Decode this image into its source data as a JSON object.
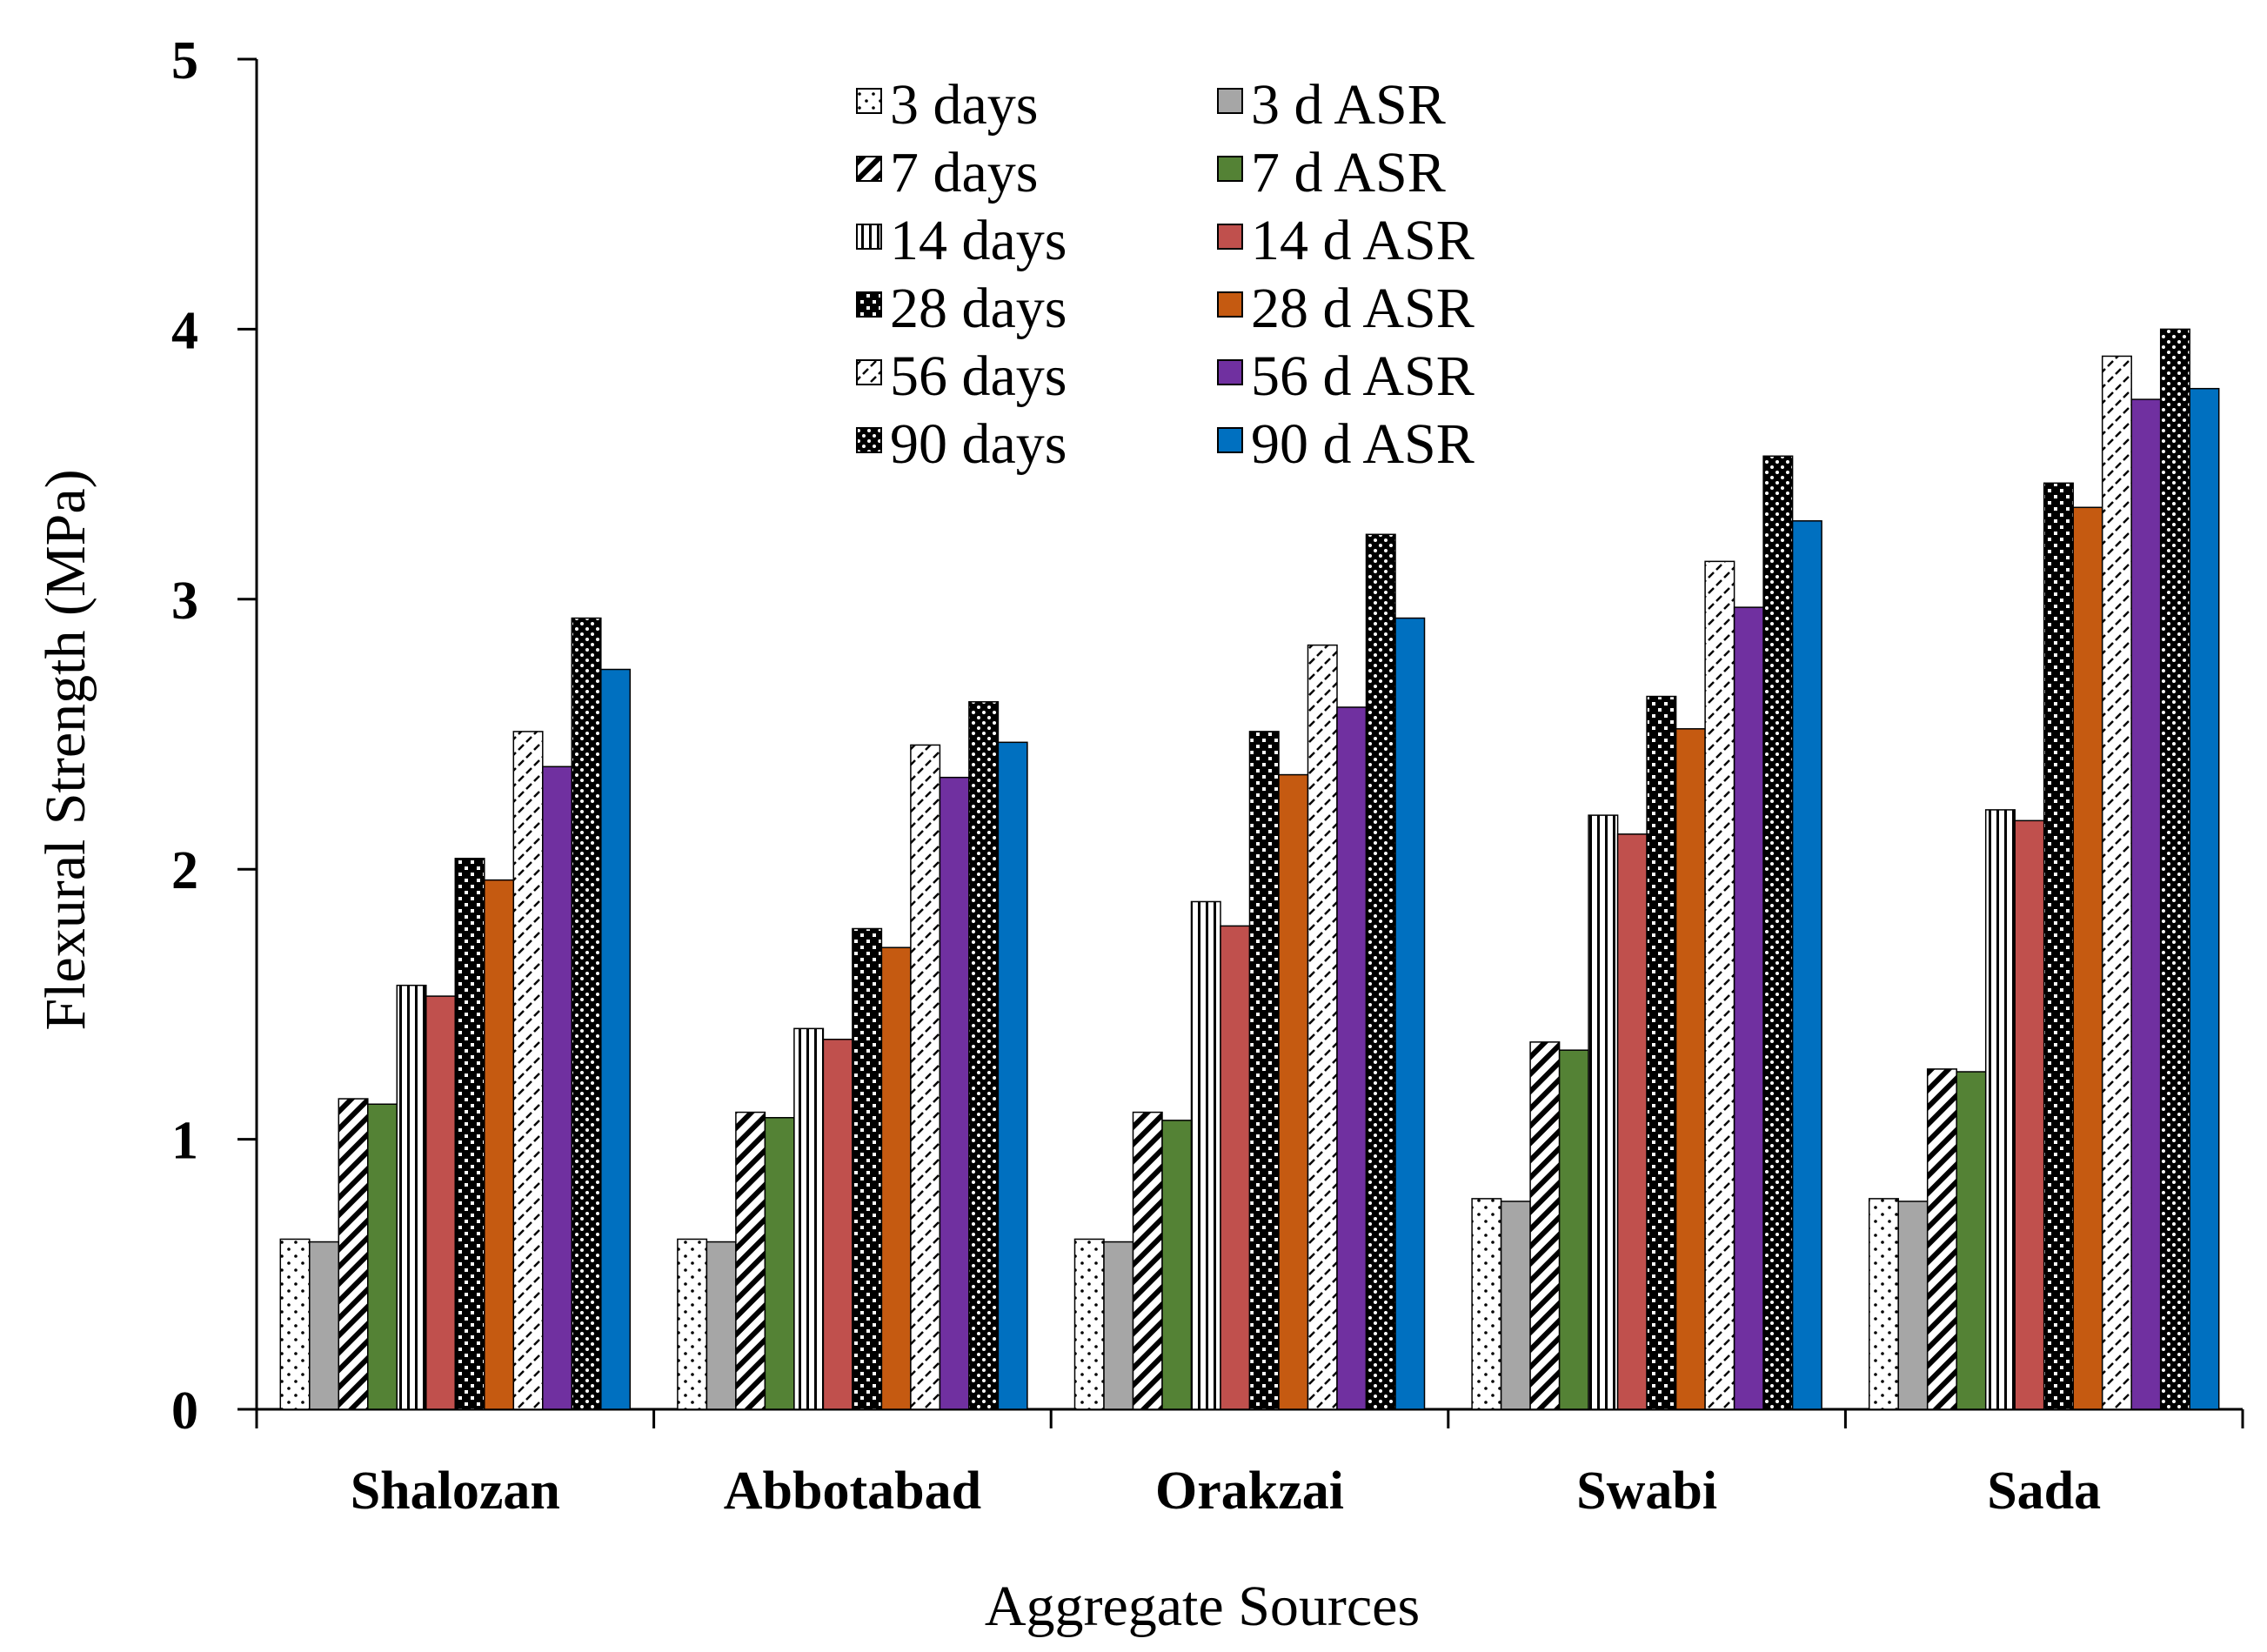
{
  "chart_data": {
    "type": "bar",
    "xlabel": "Aggregate Sources",
    "ylabel": "Flexural Strength (MPa)",
    "ylim": [
      0,
      5
    ],
    "yticks": [
      0,
      1,
      2,
      3,
      4,
      5
    ],
    "grid": false,
    "legend_position": "top-center",
    "categories": [
      "Shalozan",
      "Abbotabad",
      "Orakzai",
      "Swabi",
      "Sada"
    ],
    "series": [
      {
        "name": "3 days",
        "pattern": "dots-sparse",
        "color": "#ffffff",
        "values": [
          0.63,
          0.63,
          0.63,
          0.78,
          0.78
        ]
      },
      {
        "name": "3 d ASR",
        "pattern": "solid",
        "color": "#a6a6a6",
        "values": [
          0.62,
          0.62,
          0.62,
          0.77,
          0.77
        ]
      },
      {
        "name": "7 days",
        "pattern": "diagonal-wide",
        "color": "#ffffff",
        "values": [
          1.15,
          1.1,
          1.1,
          1.36,
          1.26
        ]
      },
      {
        "name": "7 d ASR",
        "pattern": "solid",
        "color": "#548235",
        "values": [
          1.13,
          1.08,
          1.07,
          1.33,
          1.25
        ]
      },
      {
        "name": "14 days",
        "pattern": "vertical-lines",
        "color": "#ffffff",
        "values": [
          1.57,
          1.41,
          1.88,
          2.2,
          2.22
        ]
      },
      {
        "name": "14 d ASR",
        "pattern": "solid",
        "color": "#c0504d",
        "values": [
          1.53,
          1.37,
          1.79,
          2.13,
          2.18
        ]
      },
      {
        "name": "28 days",
        "pattern": "checker",
        "color": "#000000",
        "values": [
          2.04,
          1.78,
          2.51,
          2.64,
          3.43
        ]
      },
      {
        "name": "28 d ASR",
        "pattern": "solid",
        "color": "#c55a11",
        "values": [
          1.96,
          1.71,
          2.35,
          2.52,
          3.34
        ]
      },
      {
        "name": "56 days",
        "pattern": "dashed-diagonal",
        "color": "#ffffff",
        "values": [
          2.51,
          2.46,
          2.83,
          3.14,
          3.9
        ]
      },
      {
        "name": "56 d ASR",
        "pattern": "solid",
        "color": "#7030a0",
        "values": [
          2.38,
          2.34,
          2.6,
          2.97,
          3.74
        ]
      },
      {
        "name": "90 days",
        "pattern": "dots-dense",
        "color": "#000000",
        "values": [
          2.93,
          2.62,
          3.24,
          3.53,
          4.0
        ]
      },
      {
        "name": "90 d ASR",
        "pattern": "solid",
        "color": "#0070c0",
        "values": [
          2.74,
          2.47,
          2.93,
          3.29,
          3.78
        ]
      }
    ]
  }
}
